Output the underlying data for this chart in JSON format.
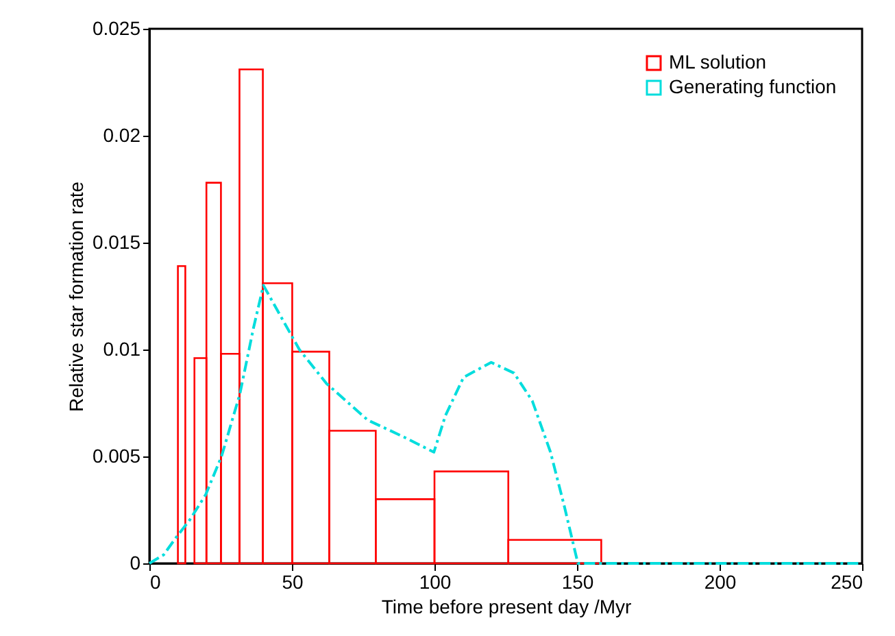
{
  "chart_data": {
    "type": "histogram",
    "xlabel": "Time before present day /Myr",
    "ylabel": "Relative star formation rate",
    "bins": [
      10,
      12.6,
      15.8,
      20,
      25.1,
      31.6,
      39.8,
      50.1,
      63.1,
      79.4,
      100,
      125.9,
      158.5
    ],
    "series": [
      {
        "name": "ML solution",
        "color": "#ff0000",
        "values": [
          0.0139,
          null,
          0.0096,
          0.0178,
          0.0098,
          0.0231,
          0.0131,
          0.0099,
          0.0062,
          0.003,
          0.0043,
          0.0011
        ]
      },
      {
        "name": "Generating function",
        "type": "line",
        "color": "#00dddd",
        "line_style": "dashed",
        "x": [
          0,
          5,
          9.3,
          14,
          19.7,
          25.3,
          31.7,
          36.5,
          40,
          52.6,
          62.2,
          76.6,
          89.4,
          99.8,
          103.8,
          110.2,
          119.9,
          127.9,
          134.3,
          140.7,
          145.5,
          150.3,
          200,
          250
        ],
        "values": [
          0,
          0.0004,
          0.0012,
          0.002,
          0.0032,
          0.005,
          0.0079,
          0.011,
          0.013,
          0.01,
          0.0084,
          0.0067,
          0.0059,
          0.0052,
          0.0069,
          0.0087,
          0.0094,
          0.0089,
          0.0076,
          0.0052,
          0.0027,
          0,
          0,
          0
        ]
      }
    ],
    "xlim": [
      0,
      250
    ],
    "xticks": [
      0,
      50,
      100,
      150,
      200,
      250
    ],
    "ylim": [
      0,
      0.025
    ],
    "yticks": [
      0,
      0.005,
      0.01,
      0.015,
      0.02,
      0.025
    ],
    "grid": false,
    "legend": "top right"
  }
}
